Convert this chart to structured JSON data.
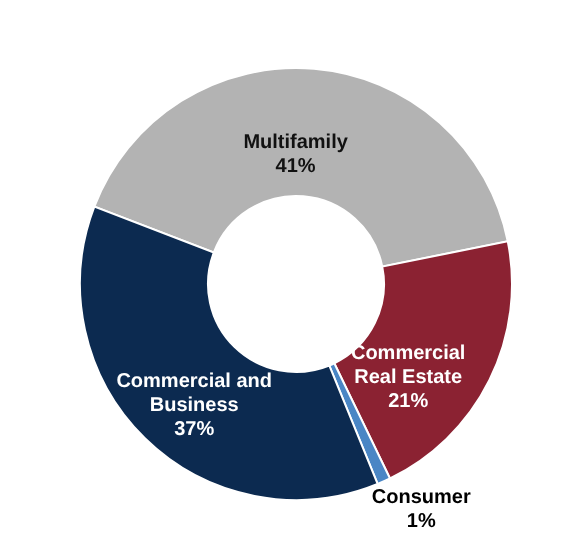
{
  "chart_data": {
    "type": "donut",
    "categories": [
      "Multifamily",
      "Commercial Real Estate",
      "Consumer",
      "Commercial and Business"
    ],
    "values": [
      41,
      21,
      1,
      37
    ],
    "value_labels": [
      "41%",
      "21%",
      "1%",
      "37%"
    ],
    "colors": [
      "#b3b3b3",
      "#8b2232",
      "#4a86c5",
      "#0c2a50"
    ],
    "legend": false
  }
}
